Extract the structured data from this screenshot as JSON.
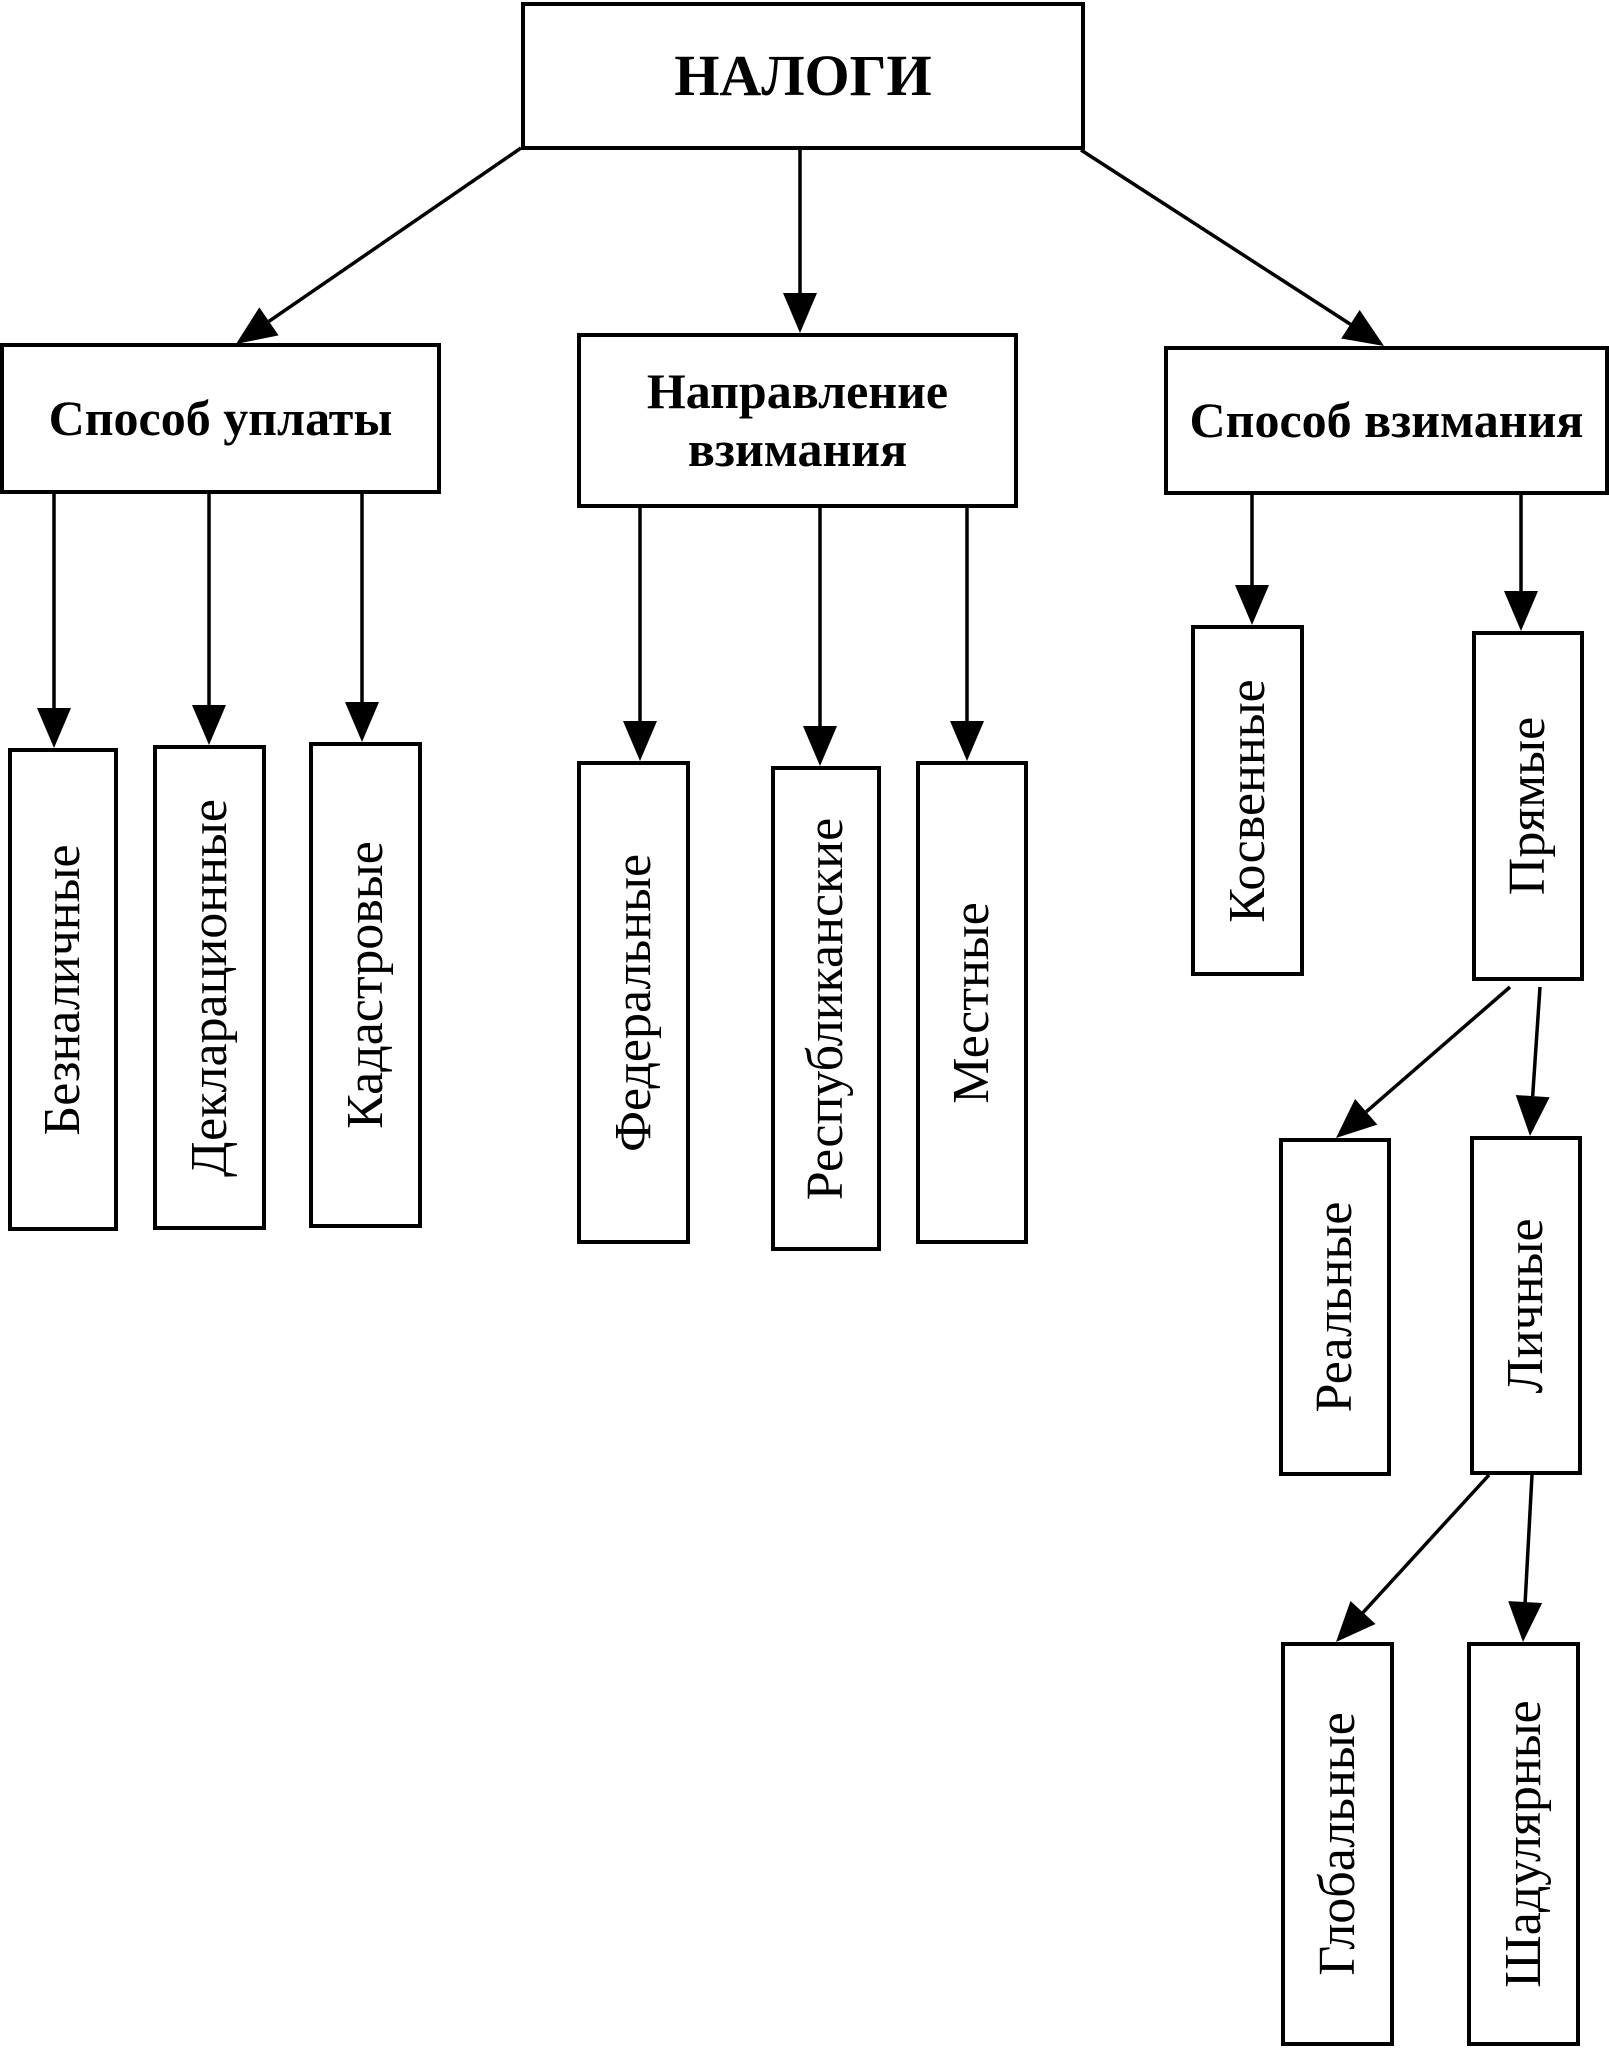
{
  "diagram": {
    "root": "НАЛОГИ",
    "categories": {
      "payment": "Способ уплаты",
      "direction": "Направление взимания",
      "levy": "Способ взимания"
    },
    "leaves": {
      "cashless": "Безналичные",
      "declaration": "Декларационные",
      "cadastral": "Кадастровые",
      "federal": "Федеральные",
      "republican": "Республиканские",
      "local": "Местные",
      "indirect": "Косвенные",
      "direct": "Прямые",
      "real": "Реальные",
      "personal": "Личные",
      "global": "Глобальные",
      "schedular": "Шадулярные"
    },
    "edges": [
      [
        "root",
        "payment"
      ],
      [
        "root",
        "direction"
      ],
      [
        "root",
        "levy"
      ],
      [
        "payment",
        "cashless"
      ],
      [
        "payment",
        "declaration"
      ],
      [
        "payment",
        "cadastral"
      ],
      [
        "direction",
        "federal"
      ],
      [
        "direction",
        "republican"
      ],
      [
        "direction",
        "local"
      ],
      [
        "levy",
        "indirect"
      ],
      [
        "levy",
        "direct"
      ],
      [
        "direct",
        "real"
      ],
      [
        "direct",
        "personal"
      ],
      [
        "personal",
        "global"
      ],
      [
        "personal",
        "schedular"
      ]
    ]
  }
}
